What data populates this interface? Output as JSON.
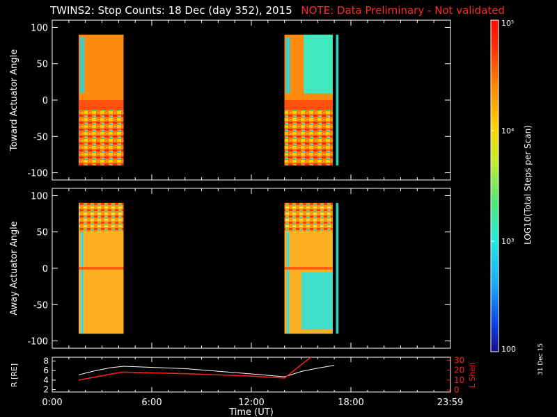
{
  "title": {
    "main": "TWINS2: Stop Counts: 18 Dec (day 352), 2015",
    "note": "NOTE: Data Preliminary - Not validated"
  },
  "date_stamp": "31 Dec 15",
  "colors": {
    "note": "#ff2a2a",
    "axes": "#ffffff",
    "r_line": "#ffffff",
    "lshell_line": "#ff2020"
  },
  "colorbar": {
    "label": "LOG10(Total Steps per Scan)",
    "tick_labels": [
      "100",
      "10³",
      "10⁴",
      "10⁵"
    ],
    "tick_values": [
      100,
      1000,
      10000,
      100000
    ]
  },
  "chart_data": [
    {
      "type": "heatmap",
      "panel": "toward",
      "ylabel": "Toward Actuator Angle",
      "ylim": [
        -110,
        110
      ],
      "yticks": [
        -100,
        -50,
        0,
        50,
        100
      ],
      "xlim": [
        0,
        24
      ],
      "coverage_hours": [
        [
          1.6,
          4.3
        ],
        [
          14.0,
          16.9
        ],
        [
          17.1,
          17.25
        ]
      ],
      "angle_range": [
        -90,
        90
      ],
      "dominant_level": "high (orange/red, ~10^4.5–10^5)",
      "notes": "cyan/green streak near +90 to +60 at start of each pass; banded fringe pattern below 0"
    },
    {
      "type": "heatmap",
      "panel": "away",
      "ylabel": "Away Actuator Angle",
      "ylim": [
        -110,
        110
      ],
      "yticks": [
        -100,
        -50,
        0,
        50,
        100
      ],
      "xlim": [
        0,
        24
      ],
      "coverage_hours": [
        [
          1.6,
          4.3
        ],
        [
          14.0,
          16.9
        ],
        [
          17.1,
          17.25
        ]
      ],
      "angle_range": [
        -90,
        90
      ],
      "dominant_level": "high (orange/red)",
      "notes": "banded fringe pattern above +50; cyan region on lower right of second pass"
    },
    {
      "type": "line",
      "panel": "orbit",
      "ylabel_left": "R [RE]",
      "ylabel_right": "L Shell",
      "y_left_ticks": [
        2,
        4,
        6,
        8
      ],
      "y_right_ticks": [
        0,
        10,
        20,
        30
      ],
      "xlabel": "Time (UT)",
      "xtick_labels": [
        "0:00",
        "6:00",
        "12:00",
        "18:00",
        "23:59"
      ],
      "xtick_values": [
        0,
        6,
        12,
        18,
        23.98
      ],
      "series": [
        {
          "axis": "left",
          "x": [
            1.6,
            2.5,
            3.5,
            4.3,
            8,
            12,
            14.0,
            15,
            16,
            17.0
          ],
          "y": [
            5.1,
            5.9,
            6.6,
            6.9,
            6.4,
            5.3,
            4.7,
            5.8,
            6.5,
            7.1
          ]
        },
        {
          "axis": "right",
          "x": [
            1.6,
            4.2,
            8,
            12,
            14.0,
            14.6,
            15.2,
            15.6
          ],
          "y": [
            10,
            18,
            16.5,
            14,
            12,
            20,
            28,
            33
          ]
        }
      ]
    }
  ]
}
